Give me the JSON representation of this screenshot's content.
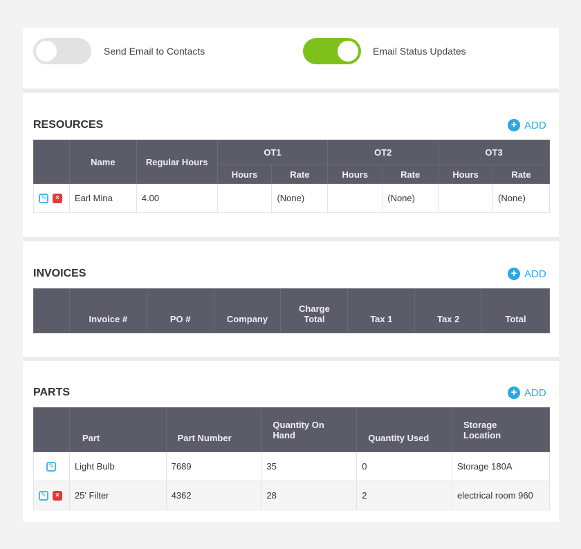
{
  "toggles": [
    {
      "label": "Send Email to Contacts",
      "on": false
    },
    {
      "label": "Email Status Updates",
      "on": true
    }
  ],
  "colors": {
    "toggle_on": "#7dc11c",
    "toggle_off": "#e2e2e2",
    "header": "#5b5c68",
    "accent": "#29a9e0",
    "delete": "#e53935"
  },
  "resources": {
    "title": "RESOURCES",
    "add": "ADD",
    "headers": {
      "name": "Name",
      "regular_hours": "Regular Hours",
      "ot1": "OT1",
      "ot2": "OT2",
      "ot3": "OT3",
      "hours": "Hours",
      "rate": "Rate"
    },
    "rows": [
      {
        "name": "Earl Mina",
        "regular_hours": "4.00",
        "ot1_hours": "",
        "ot1_rate": "(None)",
        "ot2_hours": "",
        "ot2_rate": "(None)",
        "ot3_hours": "",
        "ot3_rate": "(None)"
      }
    ]
  },
  "invoices": {
    "title": "INVOICES",
    "add": "ADD",
    "headers": [
      "Invoice #",
      "PO #",
      "Company",
      "Charge Total",
      "Tax 1",
      "Tax 2",
      "Total"
    ]
  },
  "parts": {
    "title": "PARTS",
    "add": "ADD",
    "headers": [
      "Part",
      "Part Number",
      "Quantity On Hand",
      "Quantity Used",
      "Storage Location"
    ],
    "rows": [
      {
        "part": "Light Bulb",
        "number": "7689",
        "on_hand": "35",
        "used": "0",
        "location": "Storage 180A",
        "deletable": false
      },
      {
        "part": "25' Filter",
        "number": "4362",
        "on_hand": "28",
        "used": "2",
        "location": "electrical room 960",
        "deletable": true
      }
    ]
  }
}
